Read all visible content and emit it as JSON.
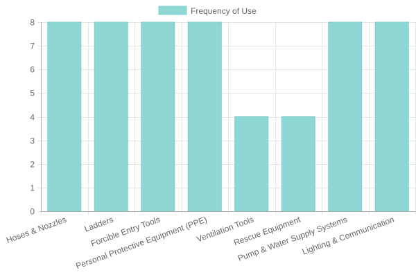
{
  "chart_data": {
    "type": "bar",
    "categories": [
      "Hoses & Nozzles",
      "Ladders",
      "Forcible Entry Tools",
      "Personal Protective Equipment (PPE)",
      "Ventilation Tools",
      "Rescue Equipment",
      "Pump & Water Supply Systems",
      "Lighting & Communication"
    ],
    "series": [
      {
        "name": "Frequency of Use",
        "values": [
          8,
          8,
          8,
          8,
          4,
          4,
          8,
          8
        ]
      }
    ],
    "yticks": [
      "0",
      "1",
      "2",
      "3",
      "4",
      "5",
      "6",
      "7",
      "8"
    ],
    "ylim": [
      0,
      8
    ],
    "grid": true,
    "legend_position": "top-center",
    "colors": {
      "bar_fill": "#8fd7d4",
      "bar_stroke": "#7ccfcb",
      "grid": "#e5e5e5",
      "axis": "#b0b0b0",
      "text": "#666666"
    }
  }
}
